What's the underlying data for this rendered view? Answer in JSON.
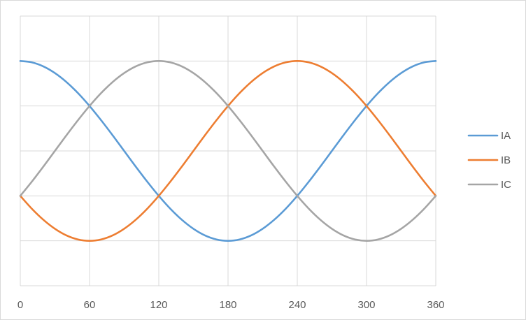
{
  "chart_data": {
    "type": "line",
    "title": "",
    "xlabel": "",
    "ylabel": "",
    "xlim": [
      0,
      360
    ],
    "ylim": [
      -1.5,
      1.5
    ],
    "x_ticks": [
      0,
      60,
      120,
      180,
      240,
      300,
      360
    ],
    "x_tick_labels": [
      "0",
      "60",
      "120",
      "180",
      "240",
      "300",
      "360"
    ],
    "y_grid_step": 0.5,
    "y_tick_labels_shown": false,
    "grid": true,
    "legend_position": "right",
    "x": [
      0,
      10,
      20,
      30,
      40,
      50,
      60,
      70,
      80,
      90,
      100,
      110,
      120,
      130,
      140,
      150,
      160,
      170,
      180,
      190,
      200,
      210,
      220,
      230,
      240,
      250,
      260,
      270,
      280,
      290,
      300,
      310,
      320,
      330,
      340,
      350,
      360
    ],
    "series": [
      {
        "name": "IA",
        "color": "#5b9bd5",
        "values": [
          1,
          0.985,
          0.94,
          0.866,
          0.766,
          0.643,
          0.5,
          0.342,
          0.174,
          0,
          -0.174,
          -0.342,
          -0.5,
          -0.643,
          -0.766,
          -0.866,
          -0.94,
          -0.985,
          -1,
          -0.985,
          -0.94,
          -0.866,
          -0.766,
          -0.643,
          -0.5,
          -0.342,
          -0.174,
          0,
          0.174,
          0.342,
          0.5,
          0.643,
          0.766,
          0.866,
          0.94,
          0.985,
          1
        ]
      },
      {
        "name": "IB",
        "color": "#ed7d31",
        "values": [
          -0.5,
          -0.643,
          -0.766,
          -0.866,
          -0.94,
          -0.985,
          -1,
          -0.985,
          -0.94,
          -0.866,
          -0.766,
          -0.643,
          -0.5,
          -0.342,
          -0.174,
          0,
          0.174,
          0.342,
          0.5,
          0.643,
          0.766,
          0.866,
          0.94,
          0.985,
          1,
          0.985,
          0.94,
          0.866,
          0.766,
          0.643,
          0.5,
          0.342,
          0.174,
          0,
          -0.174,
          -0.342,
          -0.5
        ]
      },
      {
        "name": "IC",
        "color": "#a5a5a5",
        "values": [
          -0.5,
          -0.342,
          -0.174,
          0,
          0.174,
          0.342,
          0.5,
          0.643,
          0.766,
          0.866,
          0.94,
          0.985,
          1,
          0.985,
          0.94,
          0.866,
          0.766,
          0.643,
          0.5,
          0.342,
          0.174,
          0,
          -0.174,
          -0.342,
          -0.5,
          -0.643,
          -0.766,
          -0.866,
          -0.94,
          -0.985,
          -1,
          -0.985,
          -0.94,
          -0.866,
          -0.766,
          -0.643,
          -0.5
        ]
      }
    ]
  }
}
